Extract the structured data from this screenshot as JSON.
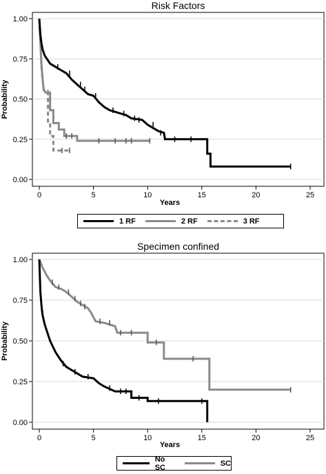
{
  "chart_data": [
    {
      "type": "line",
      "subtype": "kaplan-meier",
      "title": "Risk Factors",
      "xlabel": "Years",
      "ylabel": "Probability",
      "xlim": [
        0,
        25
      ],
      "ylim": [
        0,
        1
      ],
      "x_ticks": [
        "0",
        "5",
        "10",
        "15",
        "20",
        "25"
      ],
      "y_ticks": [
        "0.00",
        "0.25",
        "0.50",
        "0.75",
        "1.00"
      ],
      "grid": "horizontal",
      "legend_position": "bottom",
      "series": [
        {
          "name": "1 RF",
          "color": "#000000",
          "dash": "solid",
          "points": [
            [
              0,
              1.0
            ],
            [
              0.05,
              0.95
            ],
            [
              0.1,
              0.9
            ],
            [
              0.2,
              0.85
            ],
            [
              0.3,
              0.81
            ],
            [
              0.5,
              0.77
            ],
            [
              0.8,
              0.74
            ],
            [
              1.0,
              0.72
            ],
            [
              1.5,
              0.7
            ],
            [
              2.0,
              0.68
            ],
            [
              2.5,
              0.66
            ],
            [
              3.0,
              0.62
            ],
            [
              3.5,
              0.59
            ],
            [
              4.0,
              0.56
            ],
            [
              4.5,
              0.53
            ],
            [
              5.0,
              0.52
            ],
            [
              5.5,
              0.48
            ],
            [
              6.0,
              0.45
            ],
            [
              6.5,
              0.43
            ],
            [
              7.0,
              0.42
            ],
            [
              7.5,
              0.41
            ],
            [
              8.0,
              0.4
            ],
            [
              8.5,
              0.38
            ],
            [
              9.5,
              0.37
            ],
            [
              10.0,
              0.34
            ],
            [
              11.0,
              0.3
            ],
            [
              11.5,
              0.29
            ],
            [
              11.6,
              0.25
            ],
            [
              15.5,
              0.25
            ],
            [
              15.5,
              0.16
            ],
            [
              15.8,
              0.16
            ],
            [
              15.8,
              0.08
            ],
            [
              23.2,
              0.08
            ]
          ],
          "censors": [
            [
              1.7,
              0.7
            ],
            [
              2.8,
              0.66
            ],
            [
              3.8,
              0.59
            ],
            [
              4.2,
              0.56
            ],
            [
              5.2,
              0.52
            ],
            [
              6.8,
              0.43
            ],
            [
              7.8,
              0.41
            ],
            [
              8.8,
              0.38
            ],
            [
              9.2,
              0.37
            ],
            [
              10.5,
              0.34
            ],
            [
              11.2,
              0.29
            ],
            [
              12.5,
              0.25
            ],
            [
              14.0,
              0.25
            ],
            [
              23.2,
              0.08
            ]
          ]
        },
        {
          "name": "2 RF",
          "color": "#8a8a8a",
          "dash": "solid",
          "points": [
            [
              0,
              1.0
            ],
            [
              0.1,
              0.85
            ],
            [
              0.2,
              0.72
            ],
            [
              0.3,
              0.63
            ],
            [
              0.4,
              0.56
            ],
            [
              0.6,
              0.54
            ],
            [
              1.0,
              0.54
            ],
            [
              1.0,
              0.43
            ],
            [
              1.3,
              0.43
            ],
            [
              1.3,
              0.35
            ],
            [
              1.8,
              0.35
            ],
            [
              1.8,
              0.31
            ],
            [
              2.3,
              0.31
            ],
            [
              2.3,
              0.27
            ],
            [
              3.5,
              0.27
            ],
            [
              3.5,
              0.24
            ],
            [
              10.2,
              0.24
            ]
          ],
          "censors": [
            [
              0.8,
              0.54
            ],
            [
              2.5,
              0.27
            ],
            [
              3.0,
              0.27
            ],
            [
              5.5,
              0.24
            ],
            [
              7.0,
              0.24
            ],
            [
              8.0,
              0.24
            ],
            [
              8.5,
              0.24
            ],
            [
              10.2,
              0.24
            ]
          ]
        },
        {
          "name": "3 RF",
          "color": "#8a8a8a",
          "dash": "dashed",
          "points": [
            [
              0,
              1.0
            ],
            [
              0.1,
              0.85
            ],
            [
              0.2,
              0.7
            ],
            [
              0.3,
              0.62
            ],
            [
              0.4,
              0.56
            ],
            [
              0.5,
              0.54
            ],
            [
              0.8,
              0.54
            ],
            [
              0.8,
              0.36
            ],
            [
              1.0,
              0.36
            ],
            [
              1.0,
              0.27
            ],
            [
              1.3,
              0.27
            ],
            [
              1.3,
              0.18
            ],
            [
              2.8,
              0.18
            ]
          ],
          "censors": [
            [
              2.1,
              0.18
            ],
            [
              2.8,
              0.18
            ]
          ]
        }
      ]
    },
    {
      "type": "line",
      "subtype": "kaplan-meier",
      "title": "Specimen confined",
      "xlabel": "Years",
      "ylabel": "Probability",
      "xlim": [
        0,
        25
      ],
      "ylim": [
        0,
        1
      ],
      "x_ticks": [
        "0",
        "5",
        "10",
        "15",
        "20",
        "25"
      ],
      "y_ticks": [
        "0.00",
        "0.25",
        "0.50",
        "0.75",
        "1.00"
      ],
      "grid": "horizontal",
      "legend_position": "bottom",
      "series": [
        {
          "name": "No SC",
          "color": "#000000",
          "dash": "solid",
          "points": [
            [
              0,
              1.0
            ],
            [
              0.05,
              0.9
            ],
            [
              0.1,
              0.8
            ],
            [
              0.2,
              0.72
            ],
            [
              0.3,
              0.66
            ],
            [
              0.5,
              0.6
            ],
            [
              0.7,
              0.56
            ],
            [
              1.0,
              0.5
            ],
            [
              1.5,
              0.43
            ],
            [
              2.0,
              0.38
            ],
            [
              2.5,
              0.34
            ],
            [
              3.0,
              0.32
            ],
            [
              3.5,
              0.3
            ],
            [
              4.0,
              0.28
            ],
            [
              5.0,
              0.27
            ],
            [
              5.5,
              0.24
            ],
            [
              6.0,
              0.22
            ],
            [
              7.0,
              0.19
            ],
            [
              8.5,
              0.19
            ],
            [
              8.5,
              0.15
            ],
            [
              10.0,
              0.15
            ],
            [
              10.0,
              0.13
            ],
            [
              15.5,
              0.13
            ],
            [
              15.5,
              0.0
            ]
          ],
          "censors": [
            [
              2.2,
              0.36
            ],
            [
              3.3,
              0.31
            ],
            [
              4.5,
              0.28
            ],
            [
              6.5,
              0.21
            ],
            [
              7.5,
              0.19
            ],
            [
              8.0,
              0.19
            ],
            [
              9.2,
              0.15
            ],
            [
              11.0,
              0.13
            ],
            [
              15.0,
              0.13
            ]
          ]
        },
        {
          "name": "SC",
          "color": "#8a8a8a",
          "dash": "solid",
          "points": [
            [
              0,
              1.0
            ],
            [
              0.3,
              0.95
            ],
            [
              0.7,
              0.9
            ],
            [
              1.0,
              0.87
            ],
            [
              1.5,
              0.83
            ],
            [
              2.0,
              0.82
            ],
            [
              2.5,
              0.8
            ],
            [
              3.0,
              0.77
            ],
            [
              3.5,
              0.74
            ],
            [
              4.0,
              0.72
            ],
            [
              4.5,
              0.7
            ],
            [
              4.8,
              0.67
            ],
            [
              5.2,
              0.62
            ],
            [
              6.0,
              0.61
            ],
            [
              7.0,
              0.59
            ],
            [
              7.2,
              0.55
            ],
            [
              10.0,
              0.55
            ],
            [
              10.0,
              0.49
            ],
            [
              11.5,
              0.49
            ],
            [
              11.5,
              0.39
            ],
            [
              15.7,
              0.39
            ],
            [
              15.7,
              0.2
            ],
            [
              23.2,
              0.2
            ]
          ],
          "censors": [
            [
              1.2,
              0.86
            ],
            [
              1.8,
              0.83
            ],
            [
              2.7,
              0.8
            ],
            [
              3.3,
              0.76
            ],
            [
              3.8,
              0.73
            ],
            [
              4.2,
              0.71
            ],
            [
              5.6,
              0.62
            ],
            [
              6.5,
              0.61
            ],
            [
              7.5,
              0.55
            ],
            [
              8.5,
              0.55
            ],
            [
              10.8,
              0.49
            ],
            [
              14.2,
              0.39
            ],
            [
              23.2,
              0.2
            ]
          ]
        }
      ]
    }
  ]
}
